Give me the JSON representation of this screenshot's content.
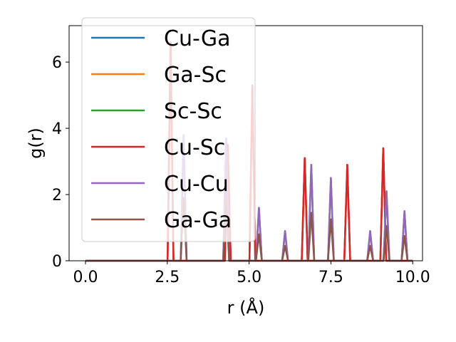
{
  "chart_data": {
    "type": "line",
    "xlabel": "r (Å)",
    "ylabel": "g(r)",
    "xlim": [
      -0.5,
      10.3
    ],
    "ylim": [
      0,
      7.1
    ],
    "xticks": [
      0.0,
      2.5,
      5.0,
      7.5,
      10.0
    ],
    "xtick_labels": [
      "0.0",
      "2.5",
      "5.0",
      "7.5",
      "10.0"
    ],
    "yticks": [
      0,
      2,
      4,
      6
    ],
    "ytick_labels": [
      "0",
      "2",
      "4",
      "6"
    ],
    "legend_position": "upper-left",
    "series": [
      {
        "name": "Cu-Ga",
        "color": "#1f77b4",
        "peaks": [
          [
            2.6,
            6.6
          ],
          [
            4.35,
            3.5
          ],
          [
            5.1,
            5.3
          ],
          [
            6.7,
            3.1
          ],
          [
            8.0,
            2.9
          ],
          [
            9.1,
            3.4
          ]
        ]
      },
      {
        "name": "Ga-Sc",
        "color": "#ff7f0e",
        "peaks": [
          [
            2.6,
            6.6
          ],
          [
            4.35,
            3.5
          ],
          [
            5.1,
            5.3
          ],
          [
            6.7,
            3.1
          ],
          [
            8.0,
            2.9
          ],
          [
            9.1,
            3.4
          ]
        ]
      },
      {
        "name": "Sc-Sc",
        "color": "#2ca02c",
        "peaks": [
          [
            3.0,
            3.8
          ],
          [
            4.3,
            3.7
          ],
          [
            5.3,
            1.6
          ],
          [
            6.1,
            0.9
          ],
          [
            6.9,
            2.9
          ],
          [
            7.5,
            2.5
          ],
          [
            8.7,
            0.9
          ],
          [
            9.2,
            2.1
          ],
          [
            9.75,
            1.5
          ]
        ]
      },
      {
        "name": "Cu-Sc",
        "color": "#d62728",
        "peaks": [
          [
            2.6,
            6.6
          ],
          [
            4.35,
            3.5
          ],
          [
            5.1,
            5.3
          ],
          [
            6.7,
            3.1
          ],
          [
            8.0,
            2.9
          ],
          [
            9.1,
            3.4
          ]
        ]
      },
      {
        "name": "Cu-Cu",
        "color": "#9467bd",
        "peaks": [
          [
            3.0,
            3.8
          ],
          [
            4.3,
            3.7
          ],
          [
            5.3,
            1.6
          ],
          [
            6.1,
            0.9
          ],
          [
            6.9,
            2.9
          ],
          [
            7.5,
            2.5
          ],
          [
            8.7,
            0.9
          ],
          [
            9.2,
            2.1
          ],
          [
            9.75,
            1.5
          ]
        ]
      },
      {
        "name": "Ga-Ga",
        "color": "#8c564b",
        "peaks": [
          [
            3.0,
            1.9
          ],
          [
            4.3,
            1.85
          ],
          [
            5.3,
            0.8
          ],
          [
            6.1,
            0.45
          ],
          [
            6.9,
            1.45
          ],
          [
            7.5,
            1.25
          ],
          [
            8.7,
            0.45
          ],
          [
            9.2,
            1.05
          ],
          [
            9.75,
            0.75
          ]
        ]
      }
    ]
  }
}
